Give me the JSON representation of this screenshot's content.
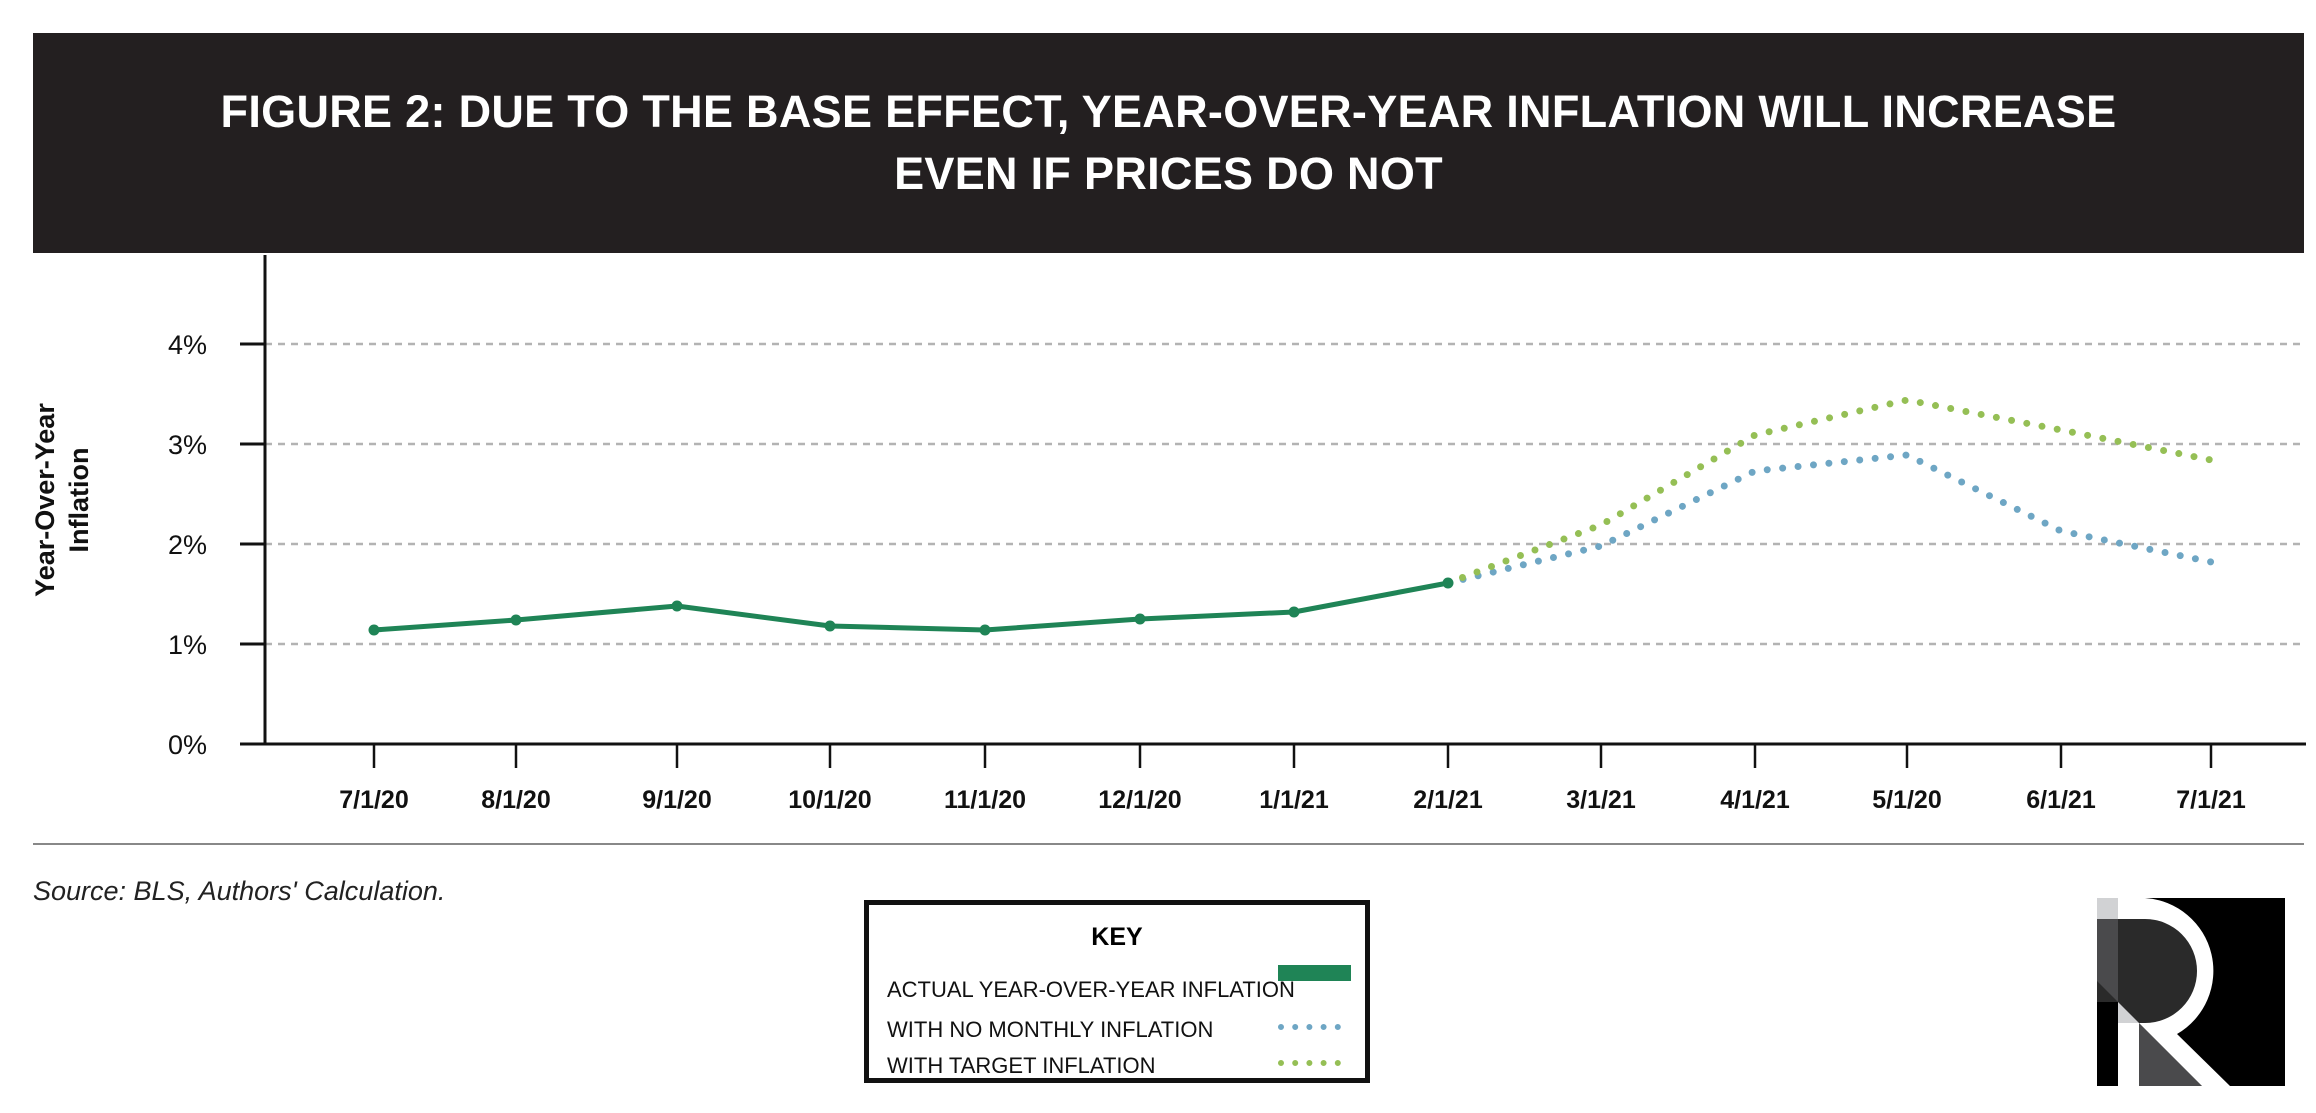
{
  "header": {
    "title_line1": "FIGURE 2: DUE TO THE BASE EFFECT, YEAR-OVER-YEAR INFLATION WILL INCREASE",
    "title_line2": "EVEN IF PRICES DO NOT"
  },
  "source": "Source: BLS, Authors' Calculation.",
  "key": {
    "title": "KEY",
    "items": [
      {
        "label": "ACTUAL YEAR-OVER-YEAR INFLATION",
        "style": "solid"
      },
      {
        "label": "WITH NO MONTHLY INFLATION",
        "style": "dotted"
      },
      {
        "label": "WITH TARGET INFLATION",
        "style": "dotted"
      }
    ]
  },
  "colors": {
    "actual": "#1f8456",
    "no_monthly": "#6ea6c4",
    "target": "#95bf55",
    "header_bg": "#231f20"
  },
  "logo": {
    "text": "R"
  },
  "chart_data": {
    "type": "line",
    "title": "FIGURE 2: DUE TO THE BASE EFFECT, YEAR-OVER-YEAR INFLATION WILL INCREASE EVEN IF PRICES DO NOT",
    "ylabel": "Year-Over-Year Inflation",
    "xlabel": "",
    "categories": [
      "7/1/20",
      "8/1/20",
      "9/1/20",
      "10/1/20",
      "11/1/20",
      "12/1/20",
      "1/1/21",
      "2/1/21",
      "3/1/21",
      "4/1/21",
      "5/1/20",
      "6/1/21",
      "7/1/21"
    ],
    "yticks": [
      "0%",
      "1%",
      "2%",
      "3%",
      "4%"
    ],
    "ylim": [
      0,
      4.9
    ],
    "grid": "horizontal dashed",
    "legend": "bottom-center",
    "series": [
      {
        "name": "ACTUAL YEAR-OVER-YEAR INFLATION",
        "values": [
          1.14,
          1.24,
          1.38,
          1.18,
          1.14,
          1.25,
          1.32,
          1.61,
          null,
          null,
          null,
          null,
          null
        ]
      },
      {
        "name": "WITH NO MONTHLY INFLATION",
        "values": [
          null,
          null,
          null,
          null,
          null,
          null,
          null,
          1.61,
          1.98,
          2.73,
          2.89,
          2.13,
          1.82
        ]
      },
      {
        "name": "WITH TARGET INFLATION",
        "values": [
          null,
          null,
          null,
          null,
          null,
          null,
          null,
          1.61,
          2.19,
          3.09,
          3.44,
          3.14,
          2.84
        ]
      }
    ]
  }
}
